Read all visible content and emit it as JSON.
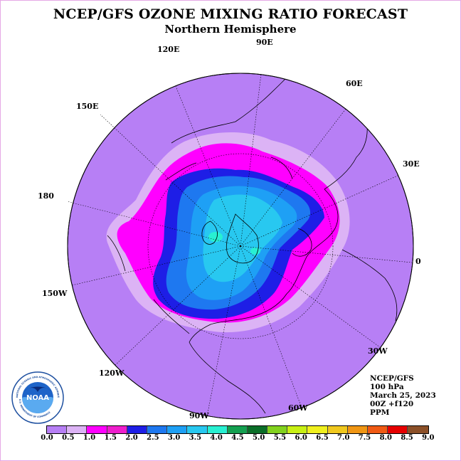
{
  "title": "NCEP/GFS OZONE MIXING RATIO FORECAST",
  "subtitle": "Northern Hemisphere",
  "longitude_labels": [
    "90E",
    "60E",
    "30E",
    "0",
    "30W",
    "60W",
    "90W",
    "120W",
    "150W",
    "180",
    "150E",
    "120E"
  ],
  "info": {
    "model": "NCEP/GFS",
    "level": "100 hPa",
    "date": "March 25, 2023",
    "run": "00Z +f120",
    "units": "PPM"
  },
  "logo": {
    "text": "NOAA",
    "ring_text": "NATIONAL OCEANIC AND ATMOSPHERIC ADMINISTRATION",
    "ring_text_bottom": "U.S. DEPARTMENT OF COMMERCE"
  },
  "colorbar": {
    "labels": [
      "0.0",
      "0.5",
      "1.0",
      "1.5",
      "2.0",
      "2.5",
      "3.0",
      "3.5",
      "4.0",
      "4.5",
      "5.0",
      "5.5",
      "6.0",
      "6.5",
      "7.0",
      "7.5",
      "8.0",
      "8.5",
      "9.0"
    ],
    "colors": [
      "#b77ff5",
      "#dcb3f5",
      "#ff00ff",
      "#ee1ecc",
      "#1e1ee6",
      "#1e78f0",
      "#1ea0f5",
      "#28c8f0",
      "#28f0d2",
      "#14a050",
      "#0a6e28",
      "#82d21e",
      "#c8f014",
      "#f0f01e",
      "#f0c81e",
      "#f09614",
      "#f05a14",
      "#e60000",
      "#8c5028"
    ]
  }
}
